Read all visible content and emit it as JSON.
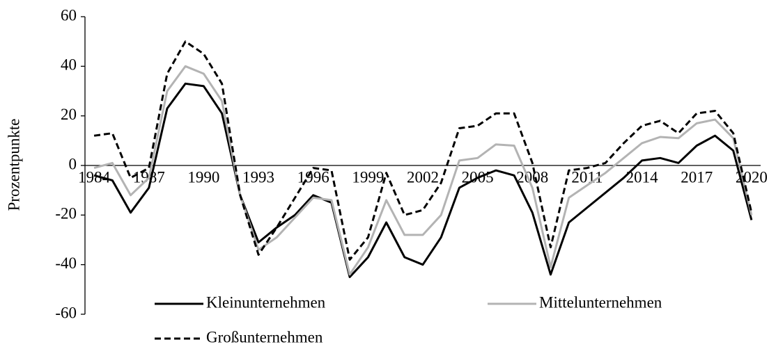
{
  "chart_data": {
    "type": "line",
    "y_label": "Prozentpunkte",
    "categories": [
      "1984",
      null,
      null,
      "1987",
      null,
      null,
      "1990",
      null,
      null,
      "1993",
      null,
      null,
      "1996",
      null,
      null,
      "1999",
      null,
      null,
      "2002",
      null,
      null,
      "2005",
      null,
      null,
      "2008",
      null,
      null,
      "2011",
      null,
      null,
      "2014",
      null,
      null,
      "2017",
      null,
      null,
      "2020"
    ],
    "series": [
      {
        "name": "Kleinunternehmen",
        "color": "#000000",
        "dash": "solid",
        "values": [
          -4,
          -6,
          -19,
          -9,
          23,
          33,
          32,
          21,
          -12,
          -31,
          -25,
          -20,
          -12,
          -15,
          -45,
          -37,
          -23,
          -37,
          -40,
          -29,
          -9,
          -5,
          -2,
          -4,
          -19,
          -44,
          -23,
          -17,
          -11,
          -5,
          2,
          3,
          1,
          8,
          12,
          6,
          -22
        ]
      },
      {
        "name": "Mittelunternehmen",
        "color": "#b3b3b3",
        "dash": "solid",
        "values": [
          -1,
          1,
          -12,
          -5,
          30,
          40,
          37,
          26,
          -12,
          -34,
          -29,
          -21,
          -13,
          -14,
          -44,
          -33,
          -14,
          -28,
          -28,
          -20,
          2,
          3,
          8.5,
          8,
          -9,
          -41,
          -13,
          -8,
          -3,
          3,
          9,
          11.5,
          11,
          17,
          18.5,
          11,
          -20
        ]
      },
      {
        "name": "Großunternehmen",
        "color": "#000000",
        "dash": "dashed",
        "values": [
          12,
          13,
          -5,
          -1,
          37,
          50,
          45,
          33,
          -12,
          -36,
          -25,
          -13,
          -1,
          -2,
          -38,
          -29,
          -3,
          -20,
          -18,
          -7,
          15,
          16,
          21,
          21,
          1,
          -33,
          -2,
          -1,
          1,
          9,
          16,
          18,
          13,
          21,
          22,
          13,
          -19
        ]
      }
    ],
    "ylim": [
      -60,
      60
    ],
    "yticks": [
      -60,
      -40,
      -20,
      0,
      20,
      40,
      60
    ],
    "legend": "bottom"
  }
}
